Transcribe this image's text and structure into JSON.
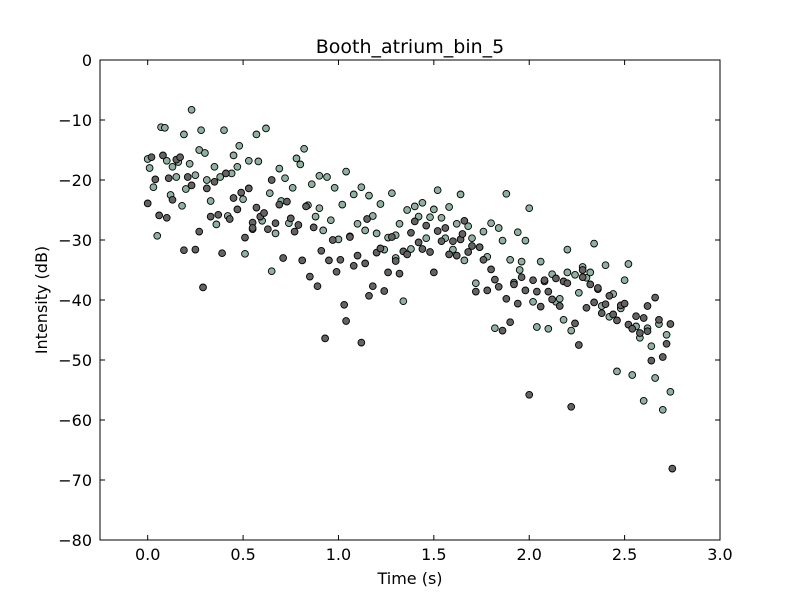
{
  "chart_data": {
    "type": "scatter",
    "title": "Booth_atrium_bin_5",
    "xlabel": "Time (s)",
    "ylabel": "Intensity (dB)",
    "xlim": [
      -0.25,
      3.0
    ],
    "ylim": [
      -80,
      0
    ],
    "xticks": [
      {
        "value": 0.0,
        "label": "0.0"
      },
      {
        "value": 0.5,
        "label": "0.5"
      },
      {
        "value": 1.0,
        "label": "1.0"
      },
      {
        "value": 1.5,
        "label": "1.5"
      },
      {
        "value": 2.0,
        "label": "2.0"
      },
      {
        "value": 2.5,
        "label": "2.5"
      },
      {
        "value": 3.0,
        "label": "3.0"
      }
    ],
    "yticks": [
      {
        "value": 0,
        "label": "0"
      },
      {
        "value": -10,
        "label": "−10"
      },
      {
        "value": -20,
        "label": "−20"
      },
      {
        "value": -30,
        "label": "−30"
      },
      {
        "value": -40,
        "label": "−40"
      },
      {
        "value": -50,
        "label": "−50"
      },
      {
        "value": -60,
        "label": "−60"
      },
      {
        "value": -70,
        "label": "−70"
      },
      {
        "value": -80,
        "label": "−80"
      }
    ],
    "grid": false,
    "legend": "none",
    "series": [
      {
        "color": "#8fb1a0",
        "points": [
          [
            0.0,
            -16.5
          ],
          [
            0.01,
            -18.0
          ],
          [
            0.03,
            -21.2
          ],
          [
            0.05,
            -29.3
          ],
          [
            0.07,
            -11.2
          ],
          [
            0.09,
            -11.3
          ],
          [
            0.1,
            -16.8
          ],
          [
            0.12,
            -22.5
          ],
          [
            0.13,
            -17.8
          ],
          [
            0.15,
            -19.5
          ],
          [
            0.16,
            -17.0
          ],
          [
            0.18,
            -24.3
          ],
          [
            0.19,
            -12.4
          ],
          [
            0.2,
            -21.5
          ],
          [
            0.22,
            -17.3
          ],
          [
            0.23,
            -8.3
          ],
          [
            0.25,
            -19.2
          ],
          [
            0.27,
            -15.0
          ],
          [
            0.28,
            -11.7
          ],
          [
            0.3,
            -15.5
          ],
          [
            0.31,
            -20.0
          ],
          [
            0.33,
            -23.5
          ],
          [
            0.35,
            -17.8
          ],
          [
            0.36,
            -27.4
          ],
          [
            0.38,
            -19.5
          ],
          [
            0.4,
            -11.7
          ],
          [
            0.42,
            -26.0
          ],
          [
            0.44,
            -18.9
          ],
          [
            0.45,
            -15.9
          ],
          [
            0.47,
            -17.8
          ],
          [
            0.48,
            -14.3
          ],
          [
            0.5,
            -23.2
          ],
          [
            0.51,
            -32.3
          ],
          [
            0.53,
            -16.8
          ],
          [
            0.55,
            -28.2
          ],
          [
            0.57,
            -12.4
          ],
          [
            0.58,
            -16.9
          ],
          [
            0.6,
            -26.8
          ],
          [
            0.62,
            -11.4
          ],
          [
            0.64,
            -22.2
          ],
          [
            0.65,
            -35.2
          ],
          [
            0.67,
            -28.9
          ],
          [
            0.69,
            -18.1
          ],
          [
            0.7,
            -23.5
          ],
          [
            0.72,
            -19.7
          ],
          [
            0.74,
            -27.2
          ],
          [
            0.76,
            -21.3
          ],
          [
            0.78,
            -16.4
          ],
          [
            0.8,
            -17.4
          ],
          [
            0.82,
            -14.8
          ],
          [
            0.84,
            -24.2
          ],
          [
            0.86,
            -20.7
          ],
          [
            0.88,
            -26.1
          ],
          [
            0.9,
            -24.7
          ],
          [
            0.92,
            -28.4
          ],
          [
            0.94,
            -19.5
          ],
          [
            0.96,
            -26.7
          ],
          [
            0.98,
            -21.3
          ],
          [
            1.0,
            -29.9
          ],
          [
            1.02,
            -24.1
          ],
          [
            1.04,
            -18.6
          ],
          [
            1.06,
            -29.4
          ],
          [
            1.08,
            -22.4
          ],
          [
            1.1,
            -27.3
          ],
          [
            1.12,
            -21.2
          ],
          [
            1.14,
            -28.4
          ],
          [
            1.16,
            -22.6
          ],
          [
            1.18,
            -26.0
          ],
          [
            1.2,
            -28.9
          ],
          [
            1.22,
            -24.0
          ],
          [
            1.24,
            -31.6
          ],
          [
            1.26,
            -29.6
          ],
          [
            1.28,
            -22.2
          ],
          [
            1.3,
            -33.0
          ],
          [
            1.32,
            -27.3
          ],
          [
            1.34,
            -40.2
          ],
          [
            1.36,
            -25.0
          ],
          [
            1.38,
            -31.5
          ],
          [
            1.4,
            -24.4
          ],
          [
            1.42,
            -26.1
          ],
          [
            1.44,
            -23.8
          ],
          [
            1.46,
            -29.7
          ],
          [
            1.48,
            -26.2
          ],
          [
            1.5,
            -24.9
          ],
          [
            1.52,
            -21.7
          ],
          [
            1.54,
            -26.3
          ],
          [
            1.56,
            -29.7
          ],
          [
            1.58,
            -24.5
          ],
          [
            1.6,
            -31.6
          ],
          [
            1.62,
            -27.3
          ],
          [
            1.64,
            -22.4
          ],
          [
            1.66,
            -33.4
          ],
          [
            1.68,
            -27.7
          ],
          [
            1.7,
            -29.7
          ],
          [
            1.72,
            -37.2
          ],
          [
            1.74,
            -31.2
          ],
          [
            1.76,
            -28.6
          ],
          [
            1.78,
            -32.8
          ],
          [
            1.8,
            -27.2
          ],
          [
            1.82,
            -44.7
          ],
          [
            1.84,
            -28.0
          ],
          [
            1.86,
            -30.1
          ],
          [
            1.88,
            -22.3
          ],
          [
            1.9,
            -33.3
          ],
          [
            1.92,
            -37.1
          ],
          [
            1.94,
            -28.7
          ],
          [
            1.96,
            -33.6
          ],
          [
            1.98,
            -30.1
          ],
          [
            2.0,
            -24.7
          ],
          [
            2.02,
            -40.3
          ],
          [
            2.04,
            -44.5
          ],
          [
            2.06,
            -33.6
          ],
          [
            2.08,
            -36.9
          ],
          [
            2.1,
            -44.8
          ],
          [
            2.12,
            -35.7
          ],
          [
            2.14,
            -40.3
          ],
          [
            2.16,
            -39.8
          ],
          [
            2.18,
            -43.3
          ],
          [
            2.2,
            -31.6
          ],
          [
            2.22,
            -45.1
          ],
          [
            2.24,
            -35.8
          ],
          [
            2.26,
            -38.8
          ],
          [
            2.28,
            -34.5
          ],
          [
            2.3,
            -36.3
          ],
          [
            2.32,
            -35.4
          ],
          [
            2.34,
            -30.6
          ],
          [
            2.36,
            -38.2
          ],
          [
            2.38,
            -41.0
          ],
          [
            2.4,
            -34.2
          ],
          [
            2.42,
            -42.8
          ],
          [
            2.44,
            -39.0
          ],
          [
            2.46,
            -51.9
          ],
          [
            2.48,
            -41.4
          ],
          [
            2.5,
            -36.7
          ],
          [
            2.52,
            -34.0
          ],
          [
            2.54,
            -52.5
          ],
          [
            2.56,
            -44.4
          ],
          [
            2.58,
            -46.3
          ],
          [
            2.6,
            -56.8
          ],
          [
            2.62,
            -44.7
          ],
          [
            2.64,
            -47.7
          ],
          [
            2.66,
            -53.0
          ],
          [
            2.68,
            -44.0
          ],
          [
            2.7,
            -58.3
          ],
          [
            2.72,
            -45.8
          ],
          [
            2.74,
            -55.3
          ],
          [
            2.2,
            -35.4
          ],
          [
            1.95,
            -35.0
          ],
          [
            1.3,
            -29.2
          ],
          [
            0.9,
            -19.3
          ]
        ]
      },
      {
        "color": "#636363",
        "points": [
          [
            0.0,
            -23.9
          ],
          [
            0.02,
            -16.2
          ],
          [
            0.04,
            -19.9
          ],
          [
            0.06,
            -25.9
          ],
          [
            0.08,
            -15.9
          ],
          [
            0.1,
            -26.3
          ],
          [
            0.11,
            -19.7
          ],
          [
            0.13,
            -23.3
          ],
          [
            0.15,
            -16.6
          ],
          [
            0.17,
            -16.2
          ],
          [
            0.19,
            -31.7
          ],
          [
            0.21,
            -19.5
          ],
          [
            0.23,
            -20.9
          ],
          [
            0.25,
            -31.6
          ],
          [
            0.27,
            -28.6
          ],
          [
            0.29,
            -37.9
          ],
          [
            0.31,
            -21.4
          ],
          [
            0.33,
            -26.1
          ],
          [
            0.35,
            -20.3
          ],
          [
            0.37,
            -25.8
          ],
          [
            0.39,
            -32.2
          ],
          [
            0.41,
            -18.9
          ],
          [
            0.43,
            -26.5
          ],
          [
            0.45,
            -23.0
          ],
          [
            0.47,
            -24.9
          ],
          [
            0.49,
            -22.1
          ],
          [
            0.51,
            -29.6
          ],
          [
            0.53,
            -21.4
          ],
          [
            0.55,
            -27.1
          ],
          [
            0.57,
            -24.6
          ],
          [
            0.59,
            -26.1
          ],
          [
            0.61,
            -25.5
          ],
          [
            0.63,
            -28.2
          ],
          [
            0.65,
            -20.0
          ],
          [
            0.67,
            -27.2
          ],
          [
            0.69,
            -24.1
          ],
          [
            0.71,
            -33.0
          ],
          [
            0.73,
            -23.6
          ],
          [
            0.75,
            -26.4
          ],
          [
            0.77,
            -28.6
          ],
          [
            0.79,
            -27.5
          ],
          [
            0.81,
            -33.4
          ],
          [
            0.83,
            -24.4
          ],
          [
            0.85,
            -36.1
          ],
          [
            0.87,
            -27.9
          ],
          [
            0.89,
            -37.7
          ],
          [
            0.91,
            -31.8
          ],
          [
            0.93,
            -46.4
          ],
          [
            0.95,
            -33.4
          ],
          [
            0.97,
            -30.0
          ],
          [
            0.99,
            -35.3
          ],
          [
            1.01,
            -33.3
          ],
          [
            1.03,
            -40.8
          ],
          [
            1.04,
            -43.5
          ],
          [
            1.06,
            -29.5
          ],
          [
            1.08,
            -34.3
          ],
          [
            1.1,
            -32.6
          ],
          [
            1.12,
            -47.1
          ],
          [
            1.14,
            -33.9
          ],
          [
            1.16,
            -39.3
          ],
          [
            1.18,
            -37.7
          ],
          [
            1.2,
            -32.1
          ],
          [
            1.22,
            -31.4
          ],
          [
            1.24,
            -38.5
          ],
          [
            1.26,
            -35.4
          ],
          [
            1.28,
            -29.5
          ],
          [
            1.3,
            -33.5
          ],
          [
            1.32,
            -35.6
          ],
          [
            1.34,
            -31.9
          ],
          [
            1.36,
            -32.4
          ],
          [
            1.38,
            -28.8
          ],
          [
            1.4,
            -26.9
          ],
          [
            1.42,
            -30.4
          ],
          [
            1.44,
            -31.5
          ],
          [
            1.46,
            -27.6
          ],
          [
            1.48,
            -32.0
          ],
          [
            1.5,
            -35.4
          ],
          [
            1.52,
            -28.5
          ],
          [
            1.54,
            -30.2
          ],
          [
            1.56,
            -28.0
          ],
          [
            1.58,
            -32.4
          ],
          [
            1.6,
            -30.2
          ],
          [
            1.62,
            -32.6
          ],
          [
            1.64,
            -29.9
          ],
          [
            1.66,
            -26.8
          ],
          [
            1.68,
            -32.0
          ],
          [
            1.7,
            -31.0
          ],
          [
            1.72,
            -38.6
          ],
          [
            1.74,
            -31.2
          ],
          [
            1.76,
            -33.3
          ],
          [
            1.78,
            -38.4
          ],
          [
            1.8,
            -34.9
          ],
          [
            1.82,
            -36.6
          ],
          [
            1.84,
            -37.8
          ],
          [
            1.86,
            -45.1
          ],
          [
            1.88,
            -39.8
          ],
          [
            1.9,
            -43.7
          ],
          [
            1.92,
            -37.4
          ],
          [
            1.94,
            -40.6
          ],
          [
            1.96,
            -36.2
          ],
          [
            1.98,
            -38.4
          ],
          [
            2.0,
            -55.8
          ],
          [
            2.02,
            -36.7
          ],
          [
            2.04,
            -38.6
          ],
          [
            2.06,
            -41.1
          ],
          [
            2.08,
            -36.7
          ],
          [
            2.1,
            -38.6
          ],
          [
            2.12,
            -39.9
          ],
          [
            2.14,
            -36.4
          ],
          [
            2.16,
            -41.0
          ],
          [
            2.18,
            -36.9
          ],
          [
            2.2,
            -37.2
          ],
          [
            2.22,
            -57.8
          ],
          [
            2.24,
            -43.9
          ],
          [
            2.26,
            -47.5
          ],
          [
            2.28,
            -36.2
          ],
          [
            2.3,
            -41.3
          ],
          [
            2.32,
            -37.4
          ],
          [
            2.34,
            -40.4
          ],
          [
            2.36,
            -38.0
          ],
          [
            2.38,
            -42.2
          ],
          [
            2.4,
            -40.7
          ],
          [
            2.42,
            -39.3
          ],
          [
            2.44,
            -42.4
          ],
          [
            2.46,
            -43.4
          ],
          [
            2.48,
            -40.9
          ],
          [
            2.5,
            -40.6
          ],
          [
            2.52,
            -44.1
          ],
          [
            2.54,
            -44.8
          ],
          [
            2.56,
            -42.7
          ],
          [
            2.58,
            -45.5
          ],
          [
            2.6,
            -43.0
          ],
          [
            2.62,
            -45.2
          ],
          [
            2.64,
            -50.1
          ],
          [
            2.66,
            -39.6
          ],
          [
            2.68,
            -43.3
          ],
          [
            2.7,
            -49.5
          ],
          [
            2.72,
            -47.3
          ],
          [
            2.74,
            -44.0
          ],
          [
            2.75,
            -68.1
          ],
          [
            0.55,
            -28.0
          ],
          [
            1.15,
            -26.5
          ],
          [
            1.65,
            -29.0
          ],
          [
            2.28,
            -35.0
          ],
          [
            2.62,
            -41.0
          ]
        ]
      }
    ]
  }
}
